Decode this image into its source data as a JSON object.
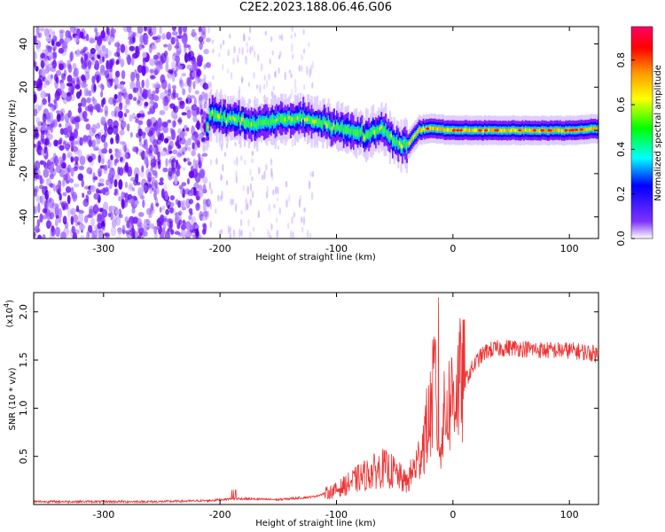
{
  "title": "C2E2.2023.188.06.46.G06",
  "chart_data": [
    {
      "type": "heatmap",
      "xlabel": "Height of straight line (km)",
      "ylabel": "Frequency (Hz)",
      "xlim": [
        -360,
        125
      ],
      "ylim": [
        -50,
        48
      ],
      "xticks": [
        -300,
        -200,
        -100,
        0,
        100
      ],
      "yticks": [
        -40,
        -20,
        0,
        20,
        40
      ],
      "colorbar": {
        "label": "Normalized spectral amplitude",
        "range": [
          0,
          0.95
        ],
        "ticks": [
          0.0,
          0.2,
          0.4,
          0.6,
          0.8
        ],
        "colors": [
          "#ffffff",
          "#6600ff",
          "#0000ff",
          "#00ffff",
          "#00ff00",
          "#ffff00",
          "#ff9900",
          "#ff0000",
          "#ff0066"
        ]
      },
      "ridge": {
        "x": [
          -210,
          -190,
          -170,
          -150,
          -130,
          -110,
          -90,
          -75,
          -60,
          -50,
          -40,
          -30,
          -20,
          0,
          50,
          100,
          125
        ],
        "y": [
          8,
          5,
          3,
          5,
          6,
          3,
          0,
          -2,
          0,
          -5,
          -7,
          0,
          1,
          0,
          0,
          0,
          1
        ]
      },
      "noise_region_x": [
        -360,
        -210
      ]
    },
    {
      "type": "line",
      "xlabel": "Height of straight line (km)",
      "ylabel": "SNR (10 * v/v)",
      "y_multiplier": "(x10",
      "y_multiplier_exp": "4",
      "y_multiplier_close": ")",
      "xlim": [
        -360,
        125
      ],
      "ylim": [
        0,
        2.2
      ],
      "xticks": [
        -300,
        -200,
        -100,
        0,
        100
      ],
      "yticks": [
        0.5,
        1.0,
        1.5,
        2.0
      ],
      "series": [
        {
          "color": "#ee3333",
          "x": [
            -360,
            -300,
            -250,
            -210,
            -190,
            -180,
            -150,
            -120,
            -100,
            -80,
            -60,
            -50,
            -40,
            -30,
            -20,
            -15,
            -12,
            -10,
            -5,
            0,
            5,
            10,
            15,
            20,
            25,
            30,
            40,
            50,
            60,
            80,
            100,
            115,
            125
          ],
          "y": [
            0.03,
            0.03,
            0.03,
            0.04,
            0.06,
            0.06,
            0.05,
            0.08,
            0.15,
            0.28,
            0.38,
            0.33,
            0.22,
            0.45,
            0.9,
            1.3,
            0.6,
            0.8,
            1.0,
            1.15,
            1.25,
            1.28,
            1.38,
            1.48,
            1.55,
            1.6,
            1.62,
            1.63,
            1.62,
            1.6,
            1.6,
            1.58,
            1.56
          ]
        }
      ]
    }
  ]
}
